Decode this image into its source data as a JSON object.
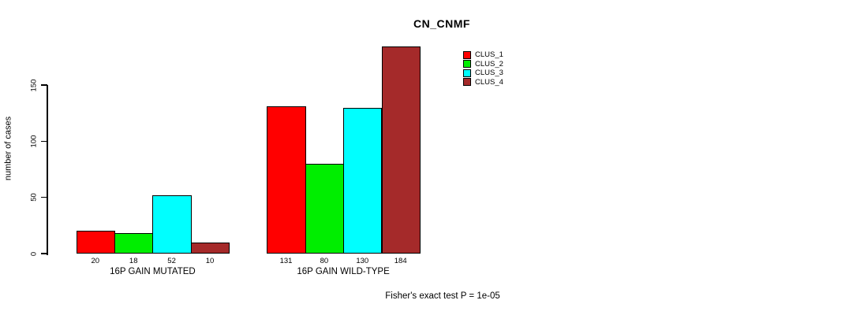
{
  "page": {
    "background_color": "#ffffff"
  },
  "chart_data": {
    "type": "bar",
    "title": "CN_CNMF",
    "ylabel": "number of cases",
    "xlabel": "",
    "categories": [
      "16P GAIN MUTATED",
      "16P GAIN WILD-TYPE"
    ],
    "series": [
      {
        "name": "CLUS_1",
        "color": "#ff0000",
        "values": [
          20,
          131
        ]
      },
      {
        "name": "CLUS_2",
        "color": "#00ee00",
        "values": [
          18,
          80
        ]
      },
      {
        "name": "CLUS_3",
        "color": "#00ffff",
        "values": [
          52,
          130
        ]
      },
      {
        "name": "CLUS_4",
        "color": "#a52a2a",
        "values": [
          10,
          184
        ]
      }
    ],
    "yticks": [
      0,
      50,
      100,
      150
    ],
    "ylim": [
      0,
      184
    ],
    "bar_border_color": "#000000",
    "show_bar_value_labels": true,
    "grid": false,
    "legend_position": "inside-top-right",
    "footnote": "Fisher's exact test P = 1e-05"
  }
}
